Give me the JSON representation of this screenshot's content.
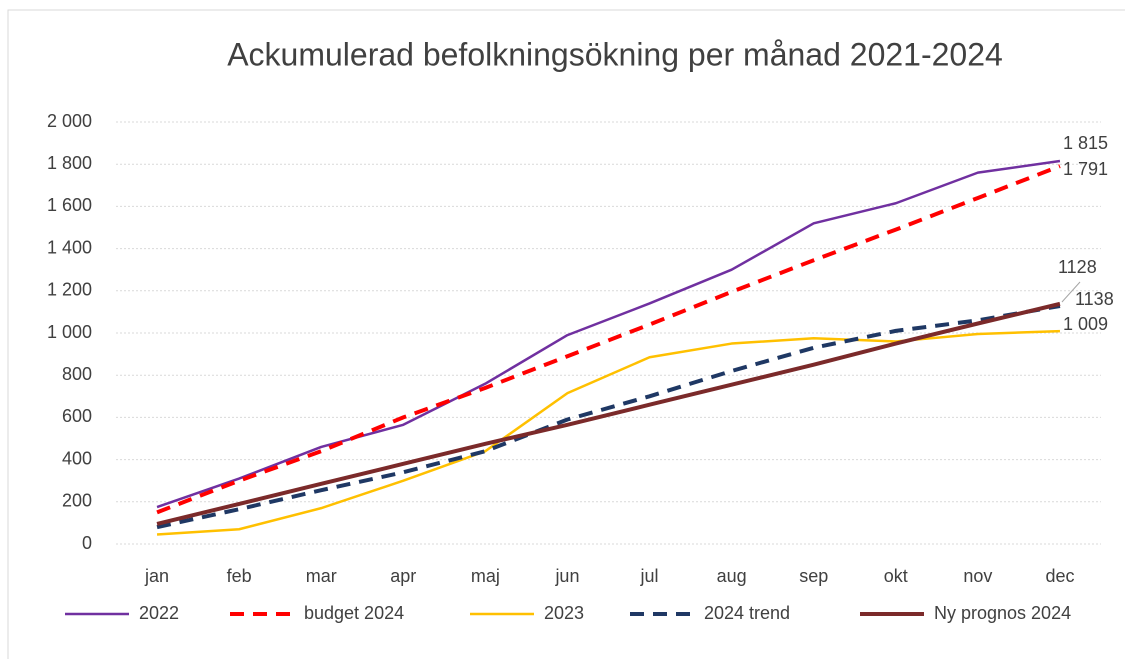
{
  "chart_data": {
    "type": "line",
    "title": "Ackumulerad befolkningsökning per månad 2021-2024",
    "categories": [
      "jan",
      "feb",
      "mar",
      "apr",
      "maj",
      "jun",
      "jul",
      "aug",
      "sep",
      "okt",
      "nov",
      "dec"
    ],
    "series": [
      {
        "name": "2022",
        "color": "#7030a0",
        "dash": false,
        "width": 2.5,
        "values": [
          175,
          310,
          460,
          565,
          760,
          990,
          1140,
          1300,
          1520,
          1615,
          1760,
          1815
        ],
        "value_labels": [
          null,
          null,
          null,
          null,
          null,
          null,
          null,
          null,
          null,
          null,
          null,
          "1 815"
        ]
      },
      {
        "name": "budget 2024",
        "color": "#ff0000",
        "dash": true,
        "width": 4,
        "values": [
          150,
          300,
          440,
          600,
          740,
          890,
          1040,
          1195,
          1345,
          1490,
          1640,
          1791
        ],
        "value_labels": [
          null,
          null,
          null,
          null,
          null,
          null,
          null,
          null,
          null,
          null,
          null,
          "1 791"
        ]
      },
      {
        "name": "2023",
        "color": "#ffc000",
        "dash": false,
        "width": 2.5,
        "values": [
          45,
          70,
          170,
          300,
          440,
          715,
          885,
          950,
          975,
          960,
          995,
          1009
        ],
        "value_labels": [
          null,
          null,
          null,
          null,
          null,
          null,
          null,
          null,
          null,
          null,
          null,
          "1 009"
        ]
      },
      {
        "name": "2024 trend",
        "color": "#1f3864",
        "dash": true,
        "width": 4,
        "values": [
          80,
          165,
          255,
          340,
          440,
          590,
          700,
          820,
          930,
          1010,
          1060,
          1128
        ]
      },
      {
        "name": "Ny prognos 2024",
        "color": "#7b2a2a",
        "dash": false,
        "width": 4,
        "values": [
          95,
          190,
          285,
          380,
          475,
          565,
          660,
          755,
          850,
          950,
          1045,
          1138
        ]
      }
    ],
    "ylim": [
      0,
      2000
    ],
    "yticks": [
      0,
      200,
      400,
      600,
      800,
      {
        "value": 1000,
        "label": "1 000"
      },
      {
        "value": 1200,
        "label": "1 200"
      },
      {
        "value": 1400,
        "label": "1 400"
      },
      {
        "value": 1600,
        "label": "1 600"
      },
      {
        "value": 1800,
        "label": "1 800"
      },
      {
        "value": 2000,
        "label": "2 000"
      }
    ],
    "grid": true,
    "legend": "bottom"
  }
}
